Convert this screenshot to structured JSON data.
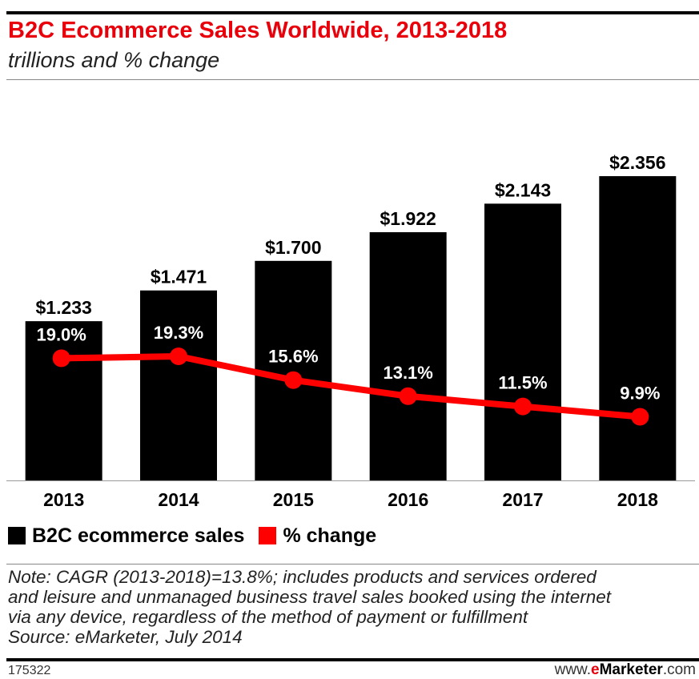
{
  "header": {
    "title": "B2C Ecommerce Sales Worldwide, 2013-2018",
    "subtitle": "trillions and % change"
  },
  "colors": {
    "bar": "#000000",
    "line": "#ff0000",
    "title": "#e8000b"
  },
  "chart_data": {
    "type": "bar",
    "categories": [
      "2013",
      "2014",
      "2015",
      "2016",
      "2017",
      "2018"
    ],
    "series": [
      {
        "name": "B2C ecommerce sales",
        "type": "bar",
        "values": [
          1.233,
          1.471,
          1.7,
          1.922,
          2.143,
          2.356
        ],
        "labels": [
          "$1.233",
          "$1.471",
          "$1.700",
          "$1.922",
          "$2.143",
          "$2.356"
        ]
      },
      {
        "name": "% change",
        "type": "line",
        "values": [
          19.0,
          19.3,
          15.6,
          13.1,
          11.5,
          9.9
        ],
        "labels": [
          "19.0%",
          "19.3%",
          "15.6%",
          "13.1%",
          "11.5%",
          "9.9%"
        ]
      }
    ],
    "bar_ylim": [
      0,
      2.5
    ],
    "line_ylim": [
      0,
      58
    ],
    "grid": false,
    "legend_position": "bottom-left"
  },
  "legend": {
    "items": [
      {
        "label": "B2C ecommerce sales",
        "color": "#000000"
      },
      {
        "label": "% change",
        "color": "#ff0000"
      }
    ]
  },
  "footer": {
    "note_lines": [
      "Note: CAGR (2013-2018)=13.8%; includes products and services ordered",
      "and leisure and unmanaged business travel sales booked using the internet",
      "via any device, regardless of the method of payment or fulfillment",
      "Source: eMarketer, July 2014"
    ],
    "chart_id": "175322",
    "site_prefix": "www.",
    "site_e": "e",
    "site_brand": "Marketer",
    "site_suffix": ".com"
  }
}
